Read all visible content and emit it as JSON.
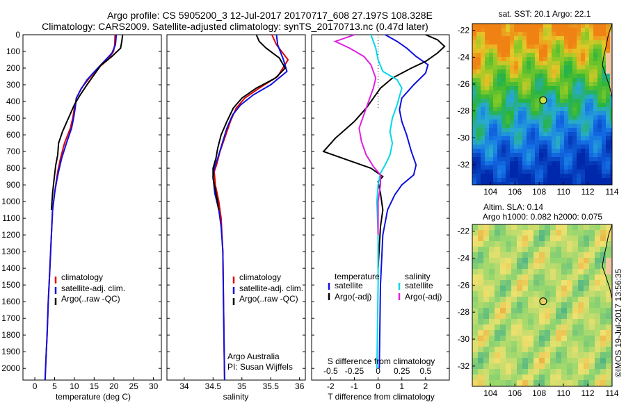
{
  "title": {
    "line1": "Argo profile: CS 5905200_3 12-Jul-2017 20170717_608 27.197S 108.328E",
    "line2": "Climatology: CARS2009. Satellite-adjusted climatology: synTS_20170713.nc (0.47d later)"
  },
  "colors": {
    "climatology": "#e00000",
    "satellite": "#1010e0",
    "argo": "#000000",
    "sal_satellite": "#00d8e8",
    "sal_argo": "#e020e0"
  },
  "depth_axis": {
    "ticks": [
      "0",
      "100",
      "200",
      "300",
      "400",
      "500",
      "600",
      "700",
      "800",
      "900",
      "1000",
      "1100",
      "1200",
      "1300",
      "1400",
      "1500",
      "1600",
      "1700",
      "1800",
      "1900",
      "2000"
    ],
    "ylim": [
      0,
      2070
    ]
  },
  "chart_data": [
    {
      "type": "line",
      "panel": "temperature",
      "xlabel": "temperature (deg C)",
      "xlim": [
        -3,
        32
      ],
      "xticks": [
        "0",
        "5",
        "10",
        "15",
        "20",
        "25",
        "30"
      ],
      "xtick_values": [
        0,
        5,
        10,
        15,
        20,
        25,
        30
      ],
      "legend": [
        "climatology",
        "satellite-adj. clim.",
        "Argo(..raw -QC)"
      ],
      "series": [
        {
          "name": "climatology",
          "color_key": "climatology",
          "points": [
            [
              20.3,
              0
            ],
            [
              20.2,
              60
            ],
            [
              19.9,
              100
            ],
            [
              18.5,
              150
            ],
            [
              16,
              200
            ],
            [
              13.8,
              260
            ],
            [
              11.8,
              320
            ],
            [
              10.5,
              380
            ],
            [
              10,
              440
            ],
            [
              9.6,
              500
            ],
            [
              9,
              560
            ],
            [
              7.5,
              650
            ],
            [
              6.5,
              740
            ],
            [
              5.8,
              820
            ],
            [
              5.4,
              880
            ],
            [
              5,
              950
            ],
            [
              4.5,
              1050
            ],
            [
              4.2,
              1200
            ],
            [
              3.8,
              1400
            ],
            [
              3.4,
              1600
            ],
            [
              3.1,
              1800
            ],
            [
              2.8,
              1950
            ],
            [
              2.6,
              2070
            ]
          ]
        },
        {
          "name": "satellite-adj. clim.",
          "color_key": "satellite",
          "points": [
            [
              20.6,
              0
            ],
            [
              20.4,
              60
            ],
            [
              19.5,
              110
            ],
            [
              17.5,
              160
            ],
            [
              15.5,
              210
            ],
            [
              13.2,
              270
            ],
            [
              11.6,
              330
            ],
            [
              10.5,
              380
            ],
            [
              10.2,
              440
            ],
            [
              9.8,
              500
            ],
            [
              9.3,
              560
            ],
            [
              8,
              650
            ],
            [
              6.8,
              740
            ],
            [
              6,
              820
            ],
            [
              5.5,
              880
            ],
            [
              5,
              950
            ],
            [
              4.5,
              1050
            ],
            [
              4.2,
              1200
            ],
            [
              3.8,
              1400
            ],
            [
              3.4,
              1600
            ],
            [
              3.1,
              1800
            ],
            [
              2.8,
              1950
            ],
            [
              2.6,
              2070
            ]
          ]
        },
        {
          "name": "Argo(..raw -QC)",
          "color_key": "argo",
          "points": [
            [
              22.2,
              0
            ],
            [
              22,
              40
            ],
            [
              21.7,
              80
            ],
            [
              19.5,
              130
            ],
            [
              16.8,
              180
            ],
            [
              15,
              240
            ],
            [
              13.2,
              300
            ],
            [
              11.5,
              360
            ],
            [
              10,
              420
            ],
            [
              8.5,
              500
            ],
            [
              7,
              580
            ],
            [
              6,
              650
            ],
            [
              5.8,
              720
            ],
            [
              5.3,
              780
            ],
            [
              4.9,
              860
            ],
            [
              4.5,
              950
            ],
            [
              4.2,
              1050
            ]
          ]
        }
      ]
    },
    {
      "type": "line",
      "panel": "salinity",
      "xlabel": "salinity",
      "xlim": [
        33.7,
        36.1
      ],
      "xticks": [
        "34",
        "34.5",
        "35",
        "35.5",
        "36"
      ],
      "xtick_values": [
        34,
        34.5,
        35,
        35.5,
        36
      ],
      "legend": [
        "climatology",
        "satellite-adj. clim.",
        "Argo(..raw -QC)"
      ],
      "notes": [
        "Argo Australia",
        "PI: Susan Wijffels"
      ],
      "series": [
        {
          "name": "climatology",
          "color_key": "climatology",
          "points": [
            [
              35.52,
              0
            ],
            [
              35.6,
              60
            ],
            [
              35.8,
              150
            ],
            [
              35.62,
              250
            ],
            [
              35.3,
              320
            ],
            [
              35.05,
              380
            ],
            [
              34.9,
              440
            ],
            [
              34.8,
              520
            ],
            [
              34.72,
              600
            ],
            [
              34.62,
              700
            ],
            [
              34.56,
              780
            ],
            [
              34.52,
              820
            ],
            [
              34.54,
              900
            ],
            [
              34.6,
              1000
            ],
            [
              34.64,
              1100
            ],
            [
              34.67,
              1300
            ],
            [
              34.68,
              1600
            ],
            [
              34.7,
              2070
            ]
          ]
        },
        {
          "name": "satellite-adj. clim.",
          "color_key": "satellite",
          "points": [
            [
              35.6,
              0
            ],
            [
              35.62,
              60
            ],
            [
              35.72,
              150
            ],
            [
              35.78,
              220
            ],
            [
              35.5,
              300
            ],
            [
              35.2,
              360
            ],
            [
              34.98,
              420
            ],
            [
              34.84,
              480
            ],
            [
              34.74,
              560
            ],
            [
              34.66,
              650
            ],
            [
              34.58,
              740
            ],
            [
              34.52,
              800
            ],
            [
              34.5,
              850
            ],
            [
              34.53,
              950
            ],
            [
              34.6,
              1050
            ],
            [
              34.64,
              1150
            ],
            [
              34.67,
              1300
            ],
            [
              34.68,
              1600
            ],
            [
              34.7,
              2070
            ]
          ]
        },
        {
          "name": "Argo(..raw -QC)",
          "color_key": "argo",
          "points": [
            [
              35.25,
              0
            ],
            [
              35.3,
              40
            ],
            [
              35.42,
              80
            ],
            [
              35.65,
              140
            ],
            [
              35.75,
              200
            ],
            [
              35.58,
              260
            ],
            [
              35.25,
              320
            ],
            [
              35.0,
              380
            ],
            [
              34.85,
              440
            ],
            [
              34.74,
              520
            ],
            [
              34.64,
              600
            ],
            [
              34.58,
              680
            ],
            [
              34.55,
              740
            ],
            [
              34.5,
              800
            ],
            [
              34.5,
              860
            ],
            [
              34.55,
              950
            ],
            [
              34.6,
              1050
            ]
          ]
        }
      ]
    },
    {
      "type": "line",
      "panel": "difference",
      "xlabel": "T difference from climatology",
      "xlabel_top": "S difference from climatology",
      "xlim": [
        -2.8,
        3.0
      ],
      "xticks": [
        "-2",
        "-1",
        "0",
        "1",
        "2"
      ],
      "xtick_values": [
        -2,
        -1,
        0,
        1,
        2
      ],
      "xticks_top": [
        "-0.5",
        "-0.25",
        "0",
        "0.25",
        "0.5"
      ],
      "xtick_top_values": [
        -0.5,
        -0.25,
        0,
        0.25,
        0.5
      ],
      "legend_temperature_title": "temperature",
      "legend_salinity_title": "salinity",
      "legend": [
        "satellite",
        "Argo(-adj)",
        "satellite",
        "Argo(-adj)"
      ],
      "series": [
        {
          "name": "satellite",
          "group": "temperature",
          "color_key": "satellite",
          "points": [
            [
              0.3,
              0
            ],
            [
              0.8,
              40
            ],
            [
              1.2,
              80
            ],
            [
              1.6,
              130
            ],
            [
              2.1,
              180
            ],
            [
              2.0,
              230
            ],
            [
              1.5,
              300
            ],
            [
              1.0,
              380
            ],
            [
              0.9,
              450
            ],
            [
              1.0,
              520
            ],
            [
              1.2,
              600
            ],
            [
              1.4,
              700
            ],
            [
              1.6,
              780
            ],
            [
              1.5,
              840
            ],
            [
              1.0,
              900
            ],
            [
              0.7,
              960
            ],
            [
              0.4,
              1050
            ],
            [
              0.2,
              1200
            ],
            [
              0.1,
              1500
            ],
            [
              0.05,
              2000
            ]
          ]
        },
        {
          "name": "Argo(-adj)",
          "group": "temperature",
          "color_key": "argo",
          "points": [
            [
              2.0,
              0
            ],
            [
              2.5,
              30
            ],
            [
              2.8,
              70
            ],
            [
              2.5,
              110
            ],
            [
              2.0,
              160
            ],
            [
              1.4,
              200
            ],
            [
              0.6,
              260
            ],
            [
              0.1,
              320
            ],
            [
              -0.2,
              380
            ],
            [
              -0.5,
              440
            ],
            [
              -1.0,
              520
            ],
            [
              -1.8,
              620
            ],
            [
              -2.3,
              700
            ],
            [
              -1.5,
              740
            ],
            [
              -0.3,
              800
            ],
            [
              0.2,
              850
            ],
            [
              0.0,
              880
            ],
            [
              0.1,
              950
            ],
            [
              0.2,
              1050
            ],
            [
              0.1,
              1150
            ],
            [
              0.0,
              1400
            ]
          ]
        },
        {
          "name": "satellite",
          "group": "salinity",
          "color_key": "sal_satellite",
          "points": [
            [
              -0.3,
              0
            ],
            [
              -0.2,
              40
            ],
            [
              -0.1,
              80
            ],
            [
              0.0,
              150
            ],
            [
              0.2,
              220
            ],
            [
              0.8,
              270
            ],
            [
              1.0,
              320
            ],
            [
              0.8,
              420
            ],
            [
              0.6,
              500
            ],
            [
              0.5,
              580
            ],
            [
              0.6,
              650
            ],
            [
              0.5,
              720
            ],
            [
              0.3,
              780
            ],
            [
              0.1,
              830
            ],
            [
              0.0,
              900
            ],
            [
              -0.05,
              1000
            ],
            [
              0.0,
              1200
            ],
            [
              0.0,
              1500
            ],
            [
              -0.05,
              2000
            ]
          ]
        },
        {
          "name": "Argo(-adj)",
          "group": "salinity",
          "color_key": "sal_argo",
          "points": [
            [
              -1.0,
              0
            ],
            [
              -1.8,
              40
            ],
            [
              -1.2,
              80
            ],
            [
              -0.6,
              130
            ],
            [
              -0.3,
              180
            ],
            [
              -0.1,
              260
            ],
            [
              -0.2,
              320
            ],
            [
              -0.4,
              400
            ],
            [
              -0.6,
              480
            ],
            [
              -0.8,
              560
            ],
            [
              -0.7,
              640
            ],
            [
              -0.5,
              720
            ],
            [
              -0.2,
              790
            ],
            [
              0.1,
              840
            ],
            [
              0.1,
              900
            ],
            [
              0.0,
              1000
            ],
            [
              0.0,
              1200
            ]
          ]
        }
      ]
    },
    {
      "type": "heatmap",
      "panel": "sst_map",
      "title": "sat. SST: 20.1  Argo: 22.1",
      "xlim": [
        102.5,
        114
      ],
      "ylim": [
        -33.5,
        -21.5
      ],
      "xticks": [
        "104",
        "106",
        "108",
        "110",
        "112",
        "114"
      ],
      "xtick_values": [
        104,
        106,
        108,
        110,
        112,
        114
      ],
      "yticks": [
        "-22",
        "-24",
        "-26",
        "-28",
        "-30",
        "-32"
      ],
      "ytick_values": [
        -22,
        -24,
        -26,
        -28,
        -30,
        -32
      ],
      "marker": [
        108.33,
        -27.2
      ]
    },
    {
      "type": "heatmap",
      "panel": "sla_map",
      "title_line1": "Altim. SLA: 0.14",
      "title_line2": "Argo h1000: 0.082  h2000: 0.075",
      "xlim": [
        102.5,
        114
      ],
      "ylim": [
        -33.5,
        -21.5
      ],
      "xticks": [
        "104",
        "106",
        "108",
        "110",
        "112",
        "114"
      ],
      "xtick_values": [
        104,
        106,
        108,
        110,
        112,
        114
      ],
      "yticks": [
        "-22",
        "-24",
        "-26",
        "-28",
        "-30",
        "-32"
      ],
      "ytick_values": [
        -22,
        -24,
        -26,
        -28,
        -30,
        -32
      ],
      "marker": [
        108.33,
        -27.2
      ]
    }
  ],
  "watermark": "©IMOS 19-Jul-2017 13:56:35"
}
